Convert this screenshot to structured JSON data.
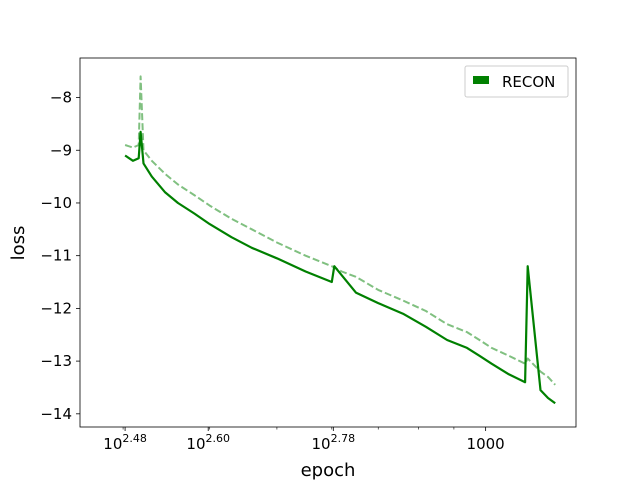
{
  "chart_data": {
    "type": "line",
    "xscale": "log",
    "xlabel": "epoch",
    "ylabel": "loss",
    "xlim": [
      260,
      1350
    ],
    "ylim": [
      -14.25,
      -7.25
    ],
    "xticks": [
      {
        "value": 302,
        "base": "10",
        "exp": "2.48"
      },
      {
        "value": 398,
        "base": "10",
        "exp": "2.60"
      },
      {
        "value": 603,
        "base": "10",
        "exp": "2.78"
      },
      {
        "value": 1000,
        "label": "1000"
      }
    ],
    "yticks": [
      {
        "value": -8,
        "label": "−8"
      },
      {
        "value": -9,
        "label": "−9"
      },
      {
        "value": -10,
        "label": "−10"
      },
      {
        "value": -11,
        "label": "−11"
      },
      {
        "value": -12,
        "label": "−12"
      },
      {
        "value": -13,
        "label": "−13"
      },
      {
        "value": -14,
        "label": "−14"
      }
    ],
    "grid": false,
    "legend": {
      "entries": [
        "RECON"
      ],
      "position": "top-right"
    },
    "series": [
      {
        "name": "RECON",
        "color": "#008000",
        "style": "solid",
        "x": [
          302,
          310,
          316,
          318,
          321,
          330,
          345,
          360,
          380,
          400,
          430,
          460,
          500,
          550,
          600,
          605,
          650,
          700,
          760,
          820,
          880,
          940,
          980,
          1020,
          1080,
          1140,
          1150,
          1200,
          1230,
          1260
        ],
        "y": [
          -9.1,
          -9.2,
          -9.15,
          -8.65,
          -9.25,
          -9.5,
          -9.8,
          -10.0,
          -10.2,
          -10.4,
          -10.65,
          -10.85,
          -11.05,
          -11.3,
          -11.5,
          -11.2,
          -11.7,
          -11.9,
          -12.1,
          -12.35,
          -12.6,
          -12.75,
          -12.9,
          -13.05,
          -13.25,
          -13.4,
          -11.2,
          -13.55,
          -13.7,
          -13.8
        ]
      },
      {
        "name": "",
        "color": "#80c080",
        "style": "dashed",
        "x": [
          302,
          310,
          316,
          318,
          321,
          330,
          345,
          360,
          380,
          400,
          430,
          460,
          500,
          550,
          600,
          620,
          650,
          700,
          760,
          820,
          880,
          940,
          980,
          1020,
          1080,
          1140,
          1150,
          1200,
          1230,
          1260
        ],
        "y": [
          -8.9,
          -8.95,
          -8.9,
          -7.6,
          -9.0,
          -9.2,
          -9.45,
          -9.65,
          -9.85,
          -10.05,
          -10.3,
          -10.5,
          -10.75,
          -11.0,
          -11.2,
          -11.3,
          -11.4,
          -11.65,
          -11.85,
          -12.05,
          -12.3,
          -12.45,
          -12.6,
          -12.75,
          -12.9,
          -13.05,
          -12.95,
          -13.2,
          -13.3,
          -13.45
        ]
      }
    ]
  }
}
